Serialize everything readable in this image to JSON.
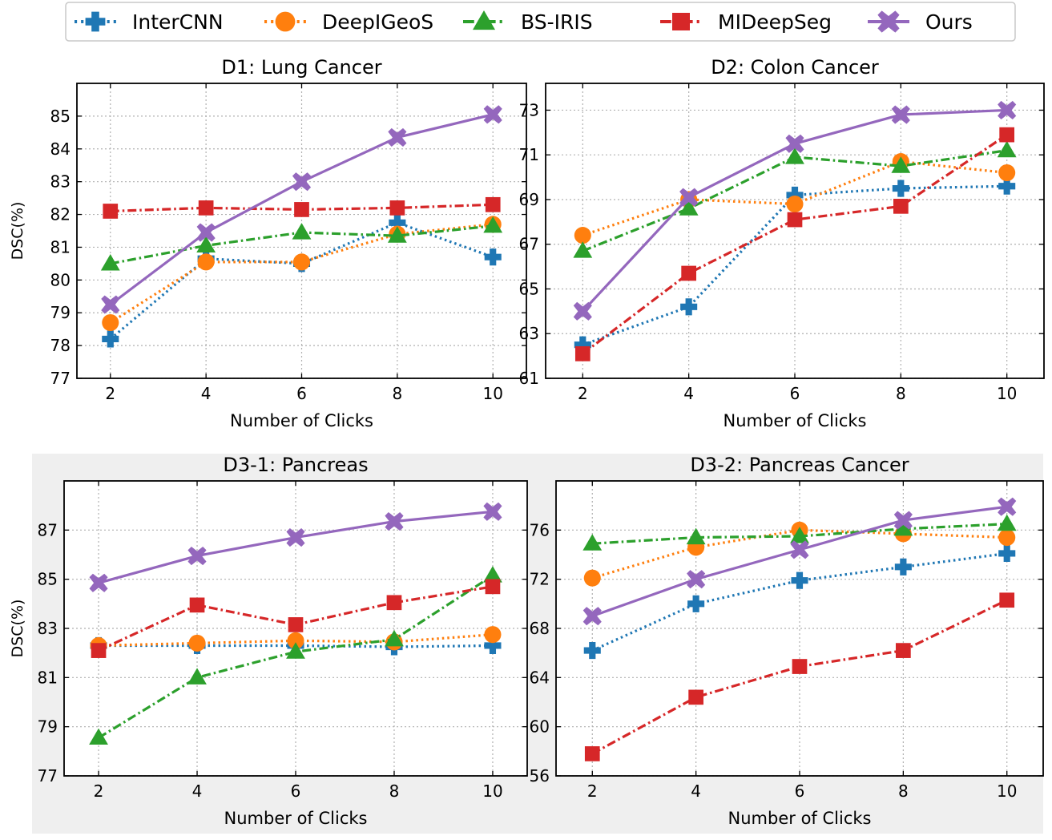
{
  "legend": {
    "items": [
      {
        "label": "InterCNN",
        "color": "#1f77b4",
        "marker": "plus-icon",
        "dash": "dotted"
      },
      {
        "label": "DeepIGeoS",
        "color": "#ff7f0e",
        "marker": "circle-icon",
        "dash": "dotted"
      },
      {
        "label": "BS-IRIS",
        "color": "#2ca02c",
        "marker": "triangle-icon",
        "dash": "dashdot"
      },
      {
        "label": "MIDeepSeg",
        "color": "#d62728",
        "marker": "square-icon",
        "dash": "dashdot"
      },
      {
        "label": "Ours",
        "color": "#9467bd",
        "marker": "x-icon",
        "dash": "solid"
      }
    ]
  },
  "chart_data": [
    {
      "type": "line",
      "title": "D1: Lung Cancer",
      "xlabel": "Number of Clicks",
      "ylabel": "DSC(%)",
      "x": [
        2,
        4,
        6,
        8,
        10
      ],
      "ylim": [
        77,
        86
      ],
      "yticks": [
        77,
        78,
        79,
        80,
        81,
        82,
        83,
        84,
        85
      ],
      "grid": true,
      "series": [
        {
          "name": "InterCNN",
          "values": [
            78.2,
            80.65,
            80.5,
            81.75,
            80.7
          ]
        },
        {
          "name": "DeepIGeoS",
          "values": [
            78.7,
            80.55,
            80.55,
            81.4,
            81.7
          ]
        },
        {
          "name": "BS-IRIS",
          "values": [
            80.5,
            81.05,
            81.45,
            81.35,
            81.65
          ]
        },
        {
          "name": "MIDeepSeg",
          "values": [
            82.1,
            82.2,
            82.15,
            82.2,
            82.3
          ]
        },
        {
          "name": "Ours",
          "values": [
            79.25,
            81.45,
            83.0,
            84.35,
            85.05
          ]
        }
      ]
    },
    {
      "type": "line",
      "title": "D2: Colon Cancer",
      "xlabel": "Number of Clicks",
      "ylabel": "",
      "x": [
        2,
        4,
        6,
        8,
        10
      ],
      "ylim": [
        61,
        74.2
      ],
      "yticks": [
        61,
        63,
        65,
        67,
        69,
        71,
        73
      ],
      "grid": true,
      "series": [
        {
          "name": "InterCNN",
          "values": [
            62.5,
            64.2,
            69.2,
            69.5,
            69.6
          ]
        },
        {
          "name": "DeepIGeoS",
          "values": [
            67.4,
            69.0,
            68.8,
            70.7,
            70.2
          ]
        },
        {
          "name": "BS-IRIS",
          "values": [
            66.7,
            68.6,
            70.9,
            70.5,
            71.2
          ]
        },
        {
          "name": "MIDeepSeg",
          "values": [
            62.1,
            65.7,
            68.1,
            68.7,
            71.9
          ]
        },
        {
          "name": "Ours",
          "values": [
            64.0,
            69.1,
            71.5,
            72.8,
            73.0
          ]
        }
      ]
    },
    {
      "type": "line",
      "title": "D3-1: Pancreas",
      "xlabel": "Number of Clicks",
      "ylabel": "DSC(%)",
      "x": [
        2,
        4,
        6,
        8,
        10
      ],
      "ylim": [
        77,
        89
      ],
      "yticks": [
        77,
        79,
        81,
        83,
        85,
        87
      ],
      "grid": true,
      "series": [
        {
          "name": "InterCNN",
          "values": [
            82.3,
            82.3,
            82.3,
            82.25,
            82.3
          ]
        },
        {
          "name": "DeepIGeoS",
          "values": [
            82.3,
            82.4,
            82.5,
            82.45,
            82.75
          ]
        },
        {
          "name": "BS-IRIS",
          "values": [
            78.55,
            81.0,
            82.05,
            82.55,
            85.15
          ]
        },
        {
          "name": "MIDeepSeg",
          "values": [
            82.1,
            83.95,
            83.15,
            84.05,
            84.7
          ]
        },
        {
          "name": "Ours",
          "values": [
            84.85,
            85.95,
            86.7,
            87.35,
            87.75
          ]
        }
      ]
    },
    {
      "type": "line",
      "title": "D3-2: Pancreas Cancer",
      "xlabel": "Number of Clicks",
      "ylabel": "",
      "x": [
        2,
        4,
        6,
        8,
        10
      ],
      "ylim": [
        56,
        80
      ],
      "yticks": [
        56,
        60,
        64,
        68,
        72,
        76
      ],
      "grid": true,
      "series": [
        {
          "name": "InterCNN",
          "values": [
            66.2,
            70.0,
            71.9,
            73.0,
            74.1
          ]
        },
        {
          "name": "DeepIGeoS",
          "values": [
            72.1,
            74.6,
            76.0,
            75.7,
            75.4
          ]
        },
        {
          "name": "BS-IRIS",
          "values": [
            74.9,
            75.4,
            75.5,
            76.1,
            76.5
          ]
        },
        {
          "name": "MIDeepSeg",
          "values": [
            57.8,
            62.4,
            64.9,
            66.2,
            70.3
          ]
        },
        {
          "name": "Ours",
          "values": [
            69.0,
            72.0,
            74.4,
            76.8,
            77.9
          ]
        }
      ]
    }
  ]
}
